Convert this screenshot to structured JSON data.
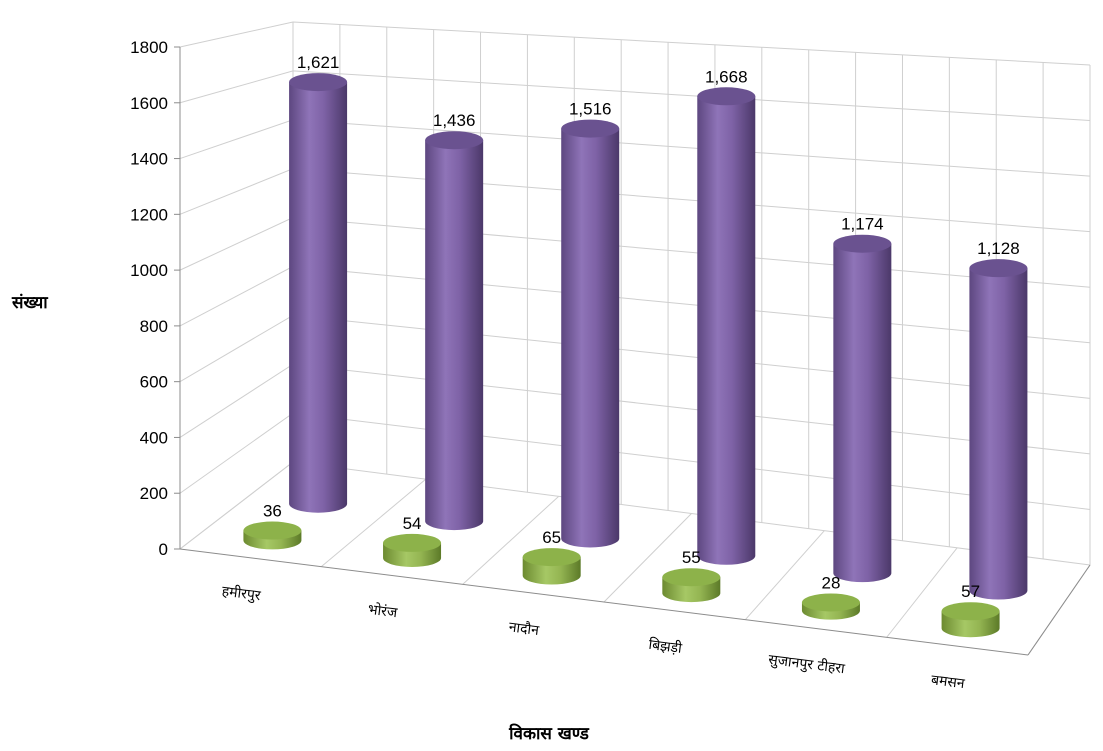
{
  "chart_data": {
    "type": "bar",
    "categories": [
      "हमीरपुर",
      "भोरंज",
      "नादौन",
      "बिझड़ी",
      "सुजानपुर टीहरा",
      "बमसन"
    ],
    "series": [
      {
        "values": [
          1621,
          1436,
          1516,
          1668,
          1174,
          1128
        ],
        "color": "#8064a2"
      },
      {
        "values": [
          36,
          54,
          65,
          55,
          28,
          57
        ],
        "color": "#9bbb59"
      }
    ],
    "value_labels": [
      [
        "1,621",
        "1,436",
        "1,516",
        "1,668",
        "1,174",
        "1,128"
      ],
      [
        "36",
        "54",
        "65",
        "55",
        "28",
        "57"
      ]
    ],
    "title": "",
    "xlabel": "विकास खण्ड",
    "ylabel": "संख्या",
    "ylim": [
      0,
      1800
    ],
    "yticks": [
      "0",
      "200",
      "400",
      "600",
      "800",
      "1000",
      "1200",
      "1400",
      "1600",
      "1800"
    ],
    "style": "3d-cylinder",
    "grid": true,
    "legend": "none"
  }
}
